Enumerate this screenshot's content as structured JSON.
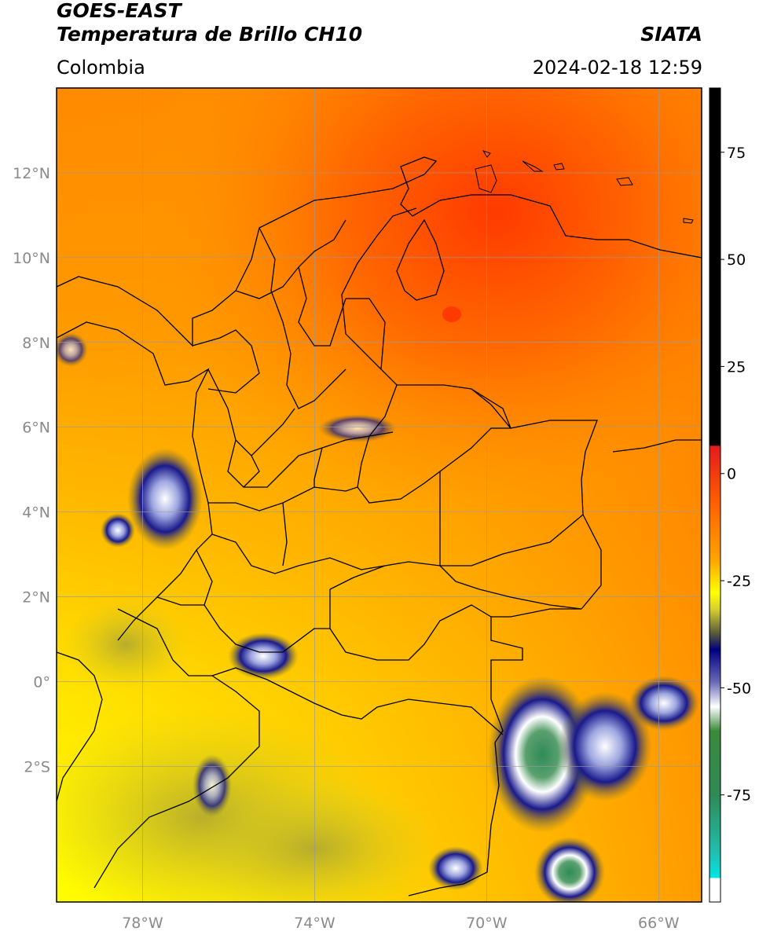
{
  "header": {
    "satellite": "GOES-EAST",
    "product": "Temperatura de Brillo CH10",
    "brand": "SIATA",
    "region": "Colombia",
    "datetime": "2024-02-18 12:59"
  },
  "map": {
    "lon_range": [
      -80,
      -65
    ],
    "lat_range": [
      -5.2,
      14
    ],
    "lat_ticks": [
      "12°N",
      "10°N",
      "8°N",
      "6°N",
      "4°N",
      "2°N",
      "0°",
      "2°S"
    ],
    "lon_ticks": [
      "78°W",
      "74°W",
      "70°W",
      "66°W"
    ]
  },
  "colorbar": {
    "range": [
      -100,
      90
    ],
    "ticks": [
      "75",
      "50",
      "25",
      "0",
      "-25",
      "-50",
      "-75"
    ],
    "colors": {
      "high": "#000000",
      "warm": "#e41a1c",
      "orange": "#ff8c00",
      "yellow": "#ffff00",
      "olive": "#8c8c2a",
      "navy": "#000080",
      "white": "#ffffff",
      "green": "#2e8b57",
      "cyan": "#00e5e5"
    }
  }
}
